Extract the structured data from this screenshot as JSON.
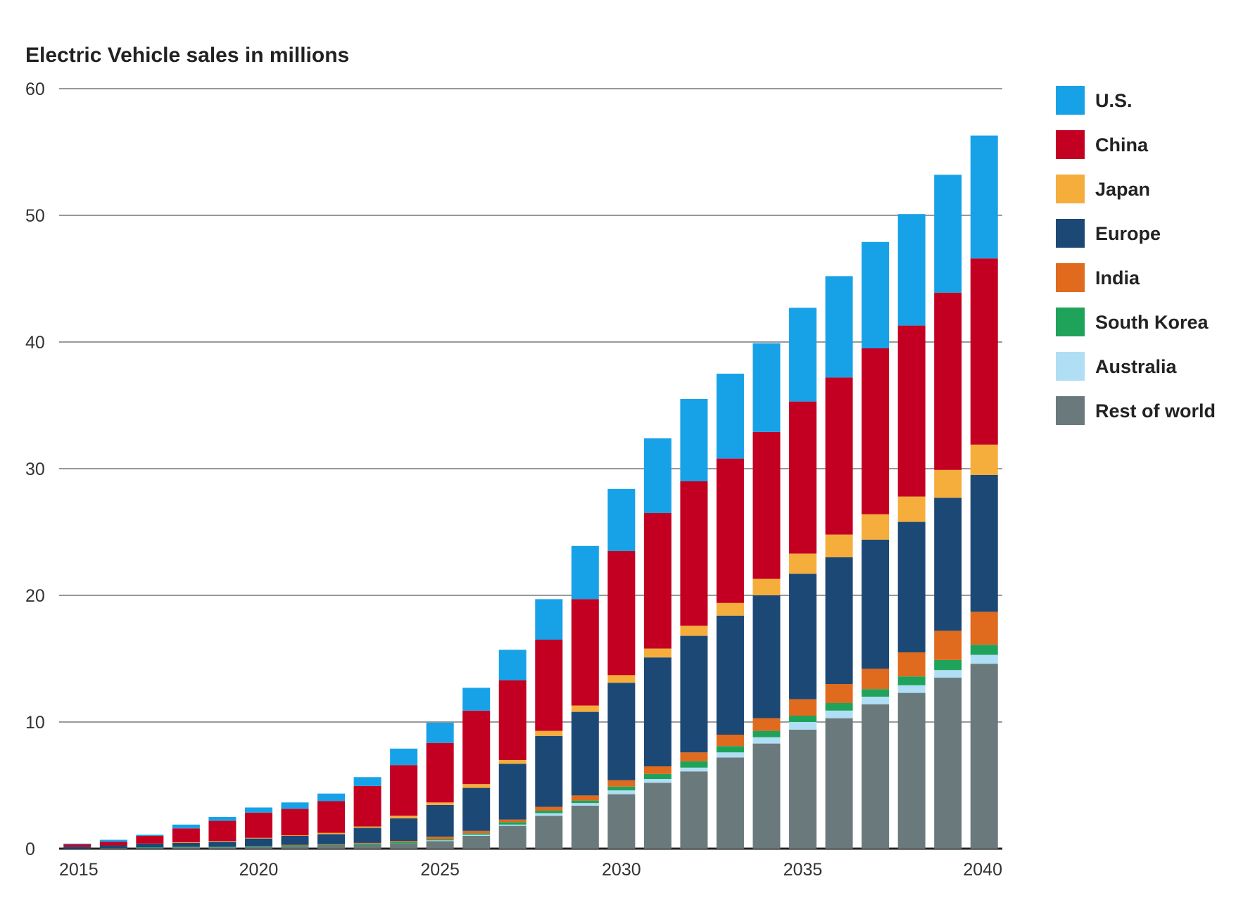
{
  "chart_data": {
    "type": "bar",
    "stacked": true,
    "title": "Electric Vehicle sales in millions",
    "xlabel": "",
    "ylabel": "",
    "ylim": [
      0,
      60
    ],
    "yticks": [
      "0",
      "10",
      "20",
      "30",
      "40",
      "50",
      "60"
    ],
    "xtick_labels": [
      "2015",
      "2020",
      "2025",
      "2030",
      "2035",
      "2040"
    ],
    "grid": true,
    "legend_position": "right",
    "categories": [
      "2015",
      "2016",
      "2017",
      "2018",
      "2019",
      "2020",
      "2021",
      "2022",
      "2023",
      "2024",
      "2025",
      "2026",
      "2027",
      "2028",
      "2029",
      "2030",
      "2031",
      "2032",
      "2033",
      "2034",
      "2035",
      "2036",
      "2037",
      "2038",
      "2039",
      "2040"
    ],
    "series": [
      {
        "name": "Rest of world",
        "color": "#6a7a7c",
        "values": [
          0.0,
          0.05,
          0.05,
          0.1,
          0.1,
          0.15,
          0.2,
          0.25,
          0.3,
          0.4,
          0.6,
          1.0,
          1.8,
          2.6,
          3.4,
          4.3,
          5.2,
          6.1,
          7.2,
          8.3,
          9.4,
          10.3,
          11.4,
          12.3,
          13.5,
          14.6
        ]
      },
      {
        "name": "Australia",
        "color": "#b0def5",
        "values": [
          0.0,
          0.0,
          0.0,
          0.0,
          0.0,
          0.0,
          0.0,
          0.0,
          0.0,
          0.0,
          0.05,
          0.1,
          0.1,
          0.2,
          0.2,
          0.3,
          0.3,
          0.3,
          0.4,
          0.5,
          0.6,
          0.6,
          0.6,
          0.6,
          0.6,
          0.7
        ]
      },
      {
        "name": "South Korea",
        "color": "#1fa35b",
        "values": [
          0.0,
          0.0,
          0.05,
          0.05,
          0.05,
          0.05,
          0.05,
          0.05,
          0.1,
          0.1,
          0.1,
          0.1,
          0.2,
          0.2,
          0.2,
          0.3,
          0.4,
          0.5,
          0.5,
          0.5,
          0.5,
          0.6,
          0.6,
          0.7,
          0.8,
          0.8
        ]
      },
      {
        "name": "India",
        "color": "#e06a1e",
        "values": [
          0.0,
          0.0,
          0.0,
          0.0,
          0.0,
          0.0,
          0.05,
          0.05,
          0.05,
          0.1,
          0.2,
          0.2,
          0.2,
          0.3,
          0.4,
          0.5,
          0.6,
          0.7,
          0.9,
          1.0,
          1.3,
          1.5,
          1.6,
          1.9,
          2.3,
          2.6
        ]
      },
      {
        "name": "Europe",
        "color": "#1c4876",
        "values": [
          0.15,
          0.2,
          0.3,
          0.3,
          0.4,
          0.6,
          0.7,
          0.8,
          1.2,
          1.8,
          2.5,
          3.4,
          4.4,
          5.6,
          6.6,
          7.7,
          8.6,
          9.2,
          9.4,
          9.7,
          9.9,
          10.0,
          10.2,
          10.3,
          10.5,
          10.8
        ]
      },
      {
        "name": "Japan",
        "color": "#f5ad3c",
        "values": [
          0.0,
          0.0,
          0.0,
          0.05,
          0.05,
          0.05,
          0.05,
          0.1,
          0.1,
          0.2,
          0.2,
          0.3,
          0.3,
          0.4,
          0.5,
          0.6,
          0.7,
          0.8,
          1.0,
          1.3,
          1.6,
          1.8,
          2.0,
          2.0,
          2.2,
          2.4
        ]
      },
      {
        "name": "China",
        "color": "#c30021",
        "values": [
          0.2,
          0.3,
          0.6,
          1.1,
          1.6,
          2.0,
          2.1,
          2.5,
          3.2,
          4.0,
          4.7,
          5.8,
          6.3,
          7.2,
          8.4,
          9.8,
          10.7,
          11.4,
          11.4,
          11.6,
          12.0,
          12.4,
          13.1,
          13.5,
          14.0,
          14.7
        ]
      },
      {
        "name": "U.S.",
        "color": "#17a2e8",
        "values": [
          0.05,
          0.15,
          0.1,
          0.3,
          0.3,
          0.4,
          0.5,
          0.6,
          0.7,
          1.3,
          1.6,
          1.8,
          2.4,
          3.2,
          4.2,
          4.9,
          5.9,
          6.5,
          6.7,
          7.0,
          7.4,
          8.0,
          8.4,
          8.8,
          9.3,
          9.7
        ]
      }
    ]
  }
}
